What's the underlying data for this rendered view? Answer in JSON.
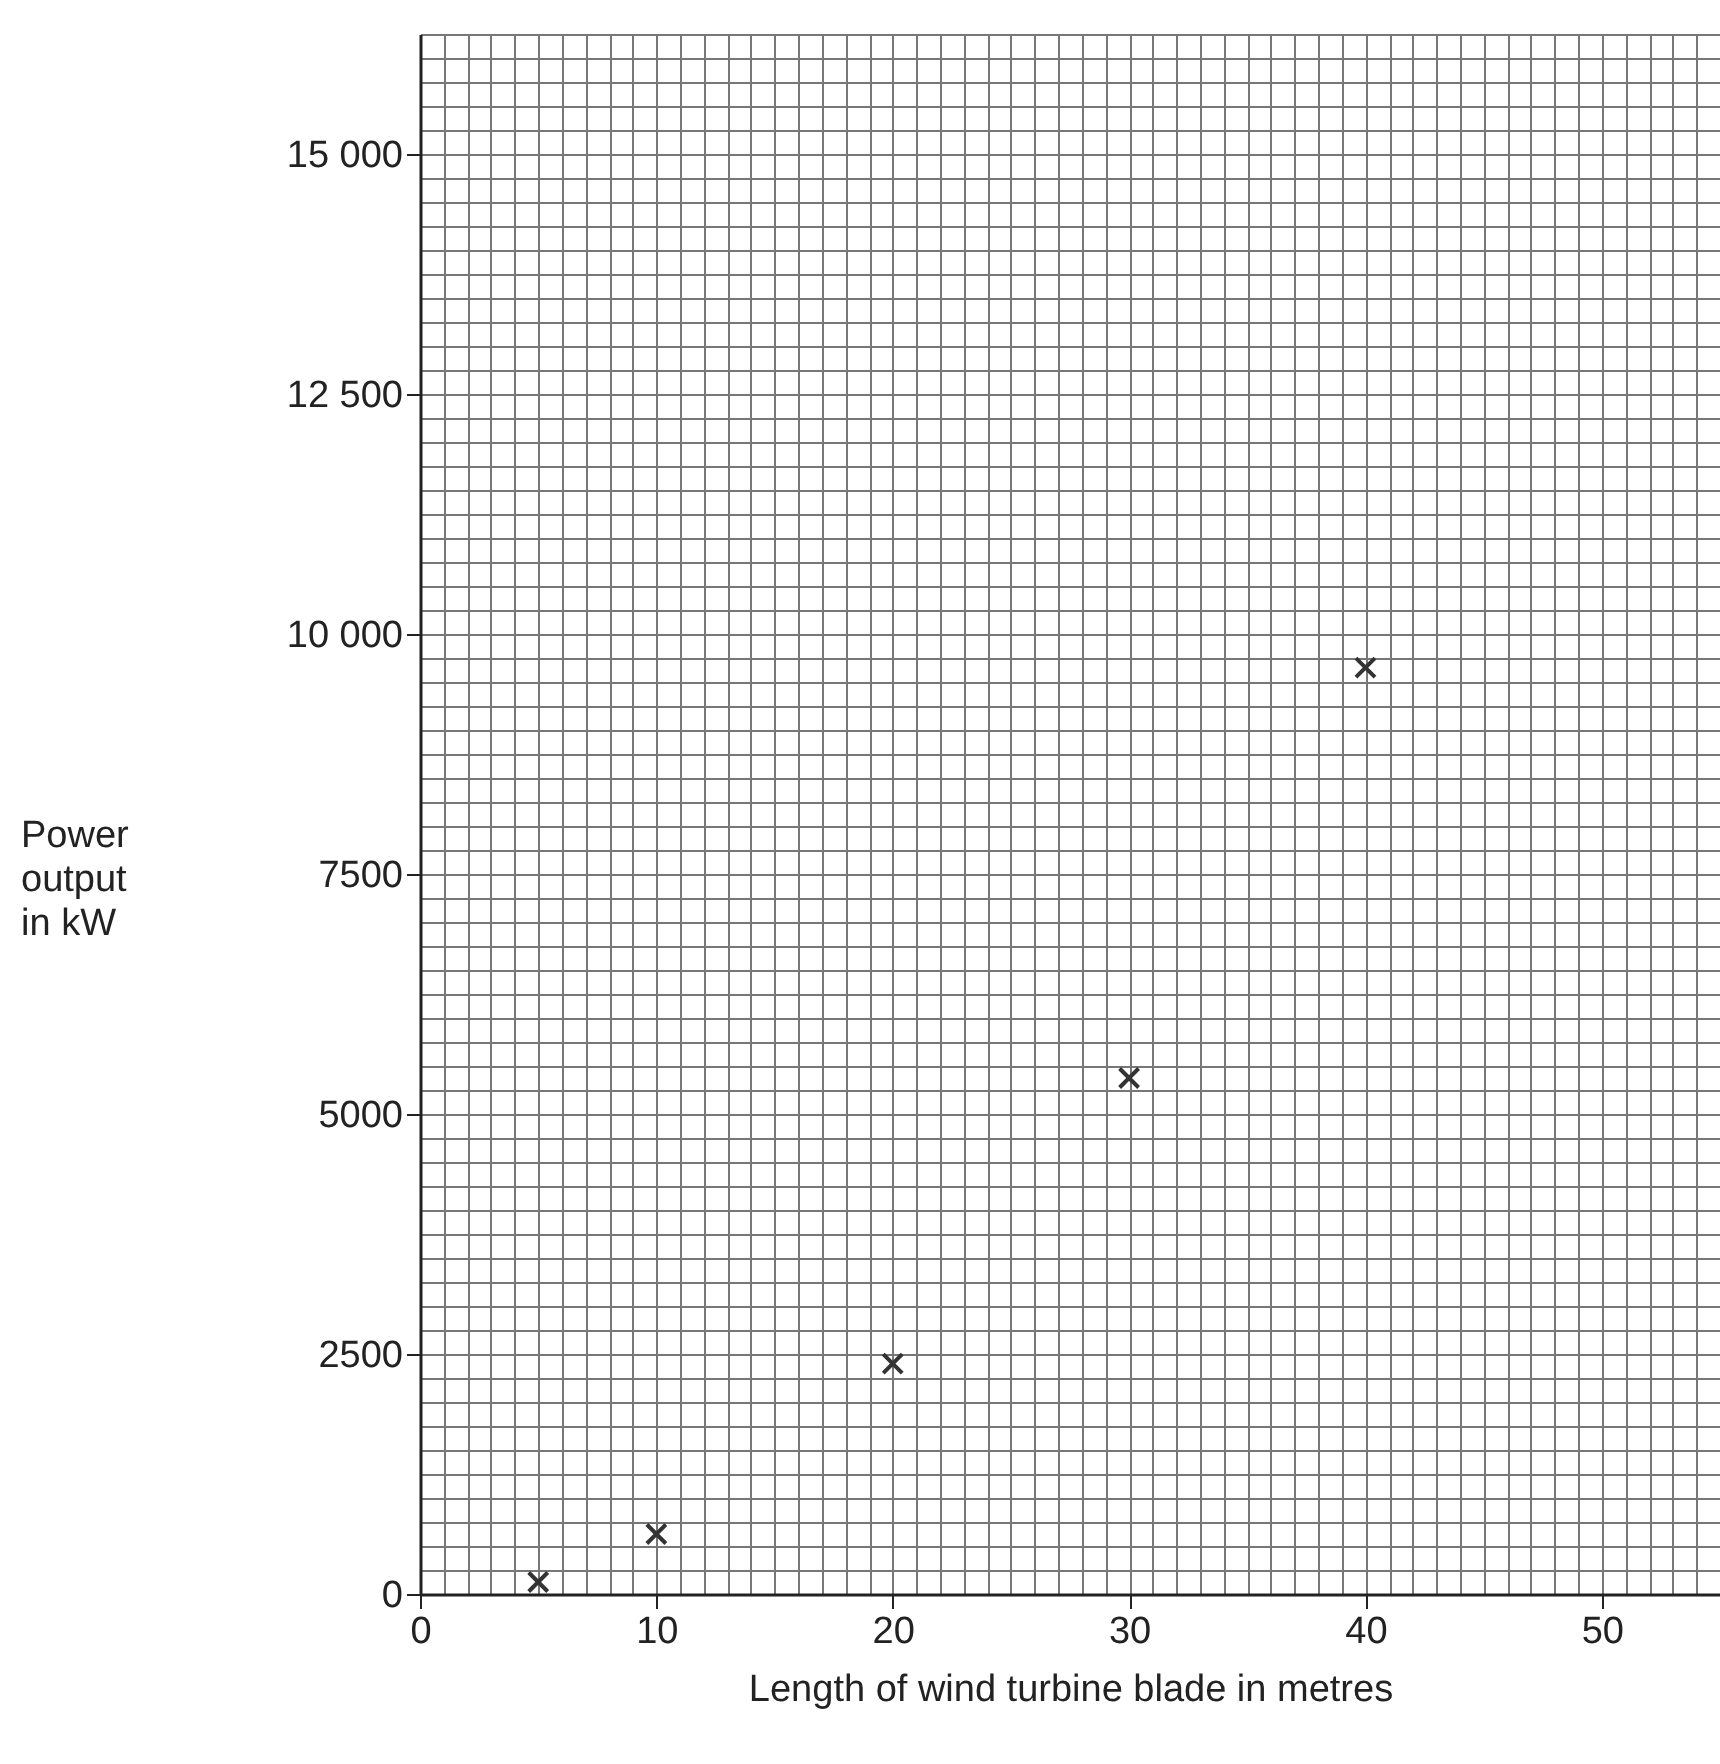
{
  "chart_data": {
    "type": "scatter",
    "xlabel": "Length of wind turbine blade in metres",
    "ylabel": "Power output in kW",
    "x": [
      5,
      10,
      20,
      30,
      40
    ],
    "values": [
      125,
      625,
      2400,
      5375,
      9650
    ],
    "color": "#333333",
    "marker": "cross",
    "xlim": [
      0,
      55
    ],
    "xticks": [
      0,
      10,
      20,
      30,
      40,
      50
    ],
    "ylim": [
      0,
      16250
    ],
    "yticks": [
      0,
      {
        "value": 2500,
        "label": "2500"
      },
      {
        "value": 5000,
        "label": "5000"
      },
      {
        "value": 7500,
        "label": "7500"
      },
      {
        "value": 10000,
        "label": "10 000"
      },
      {
        "value": 12500,
        "label": "12 500"
      },
      {
        "value": 15000,
        "label": "15 000"
      }
    ],
    "grid": true
  }
}
